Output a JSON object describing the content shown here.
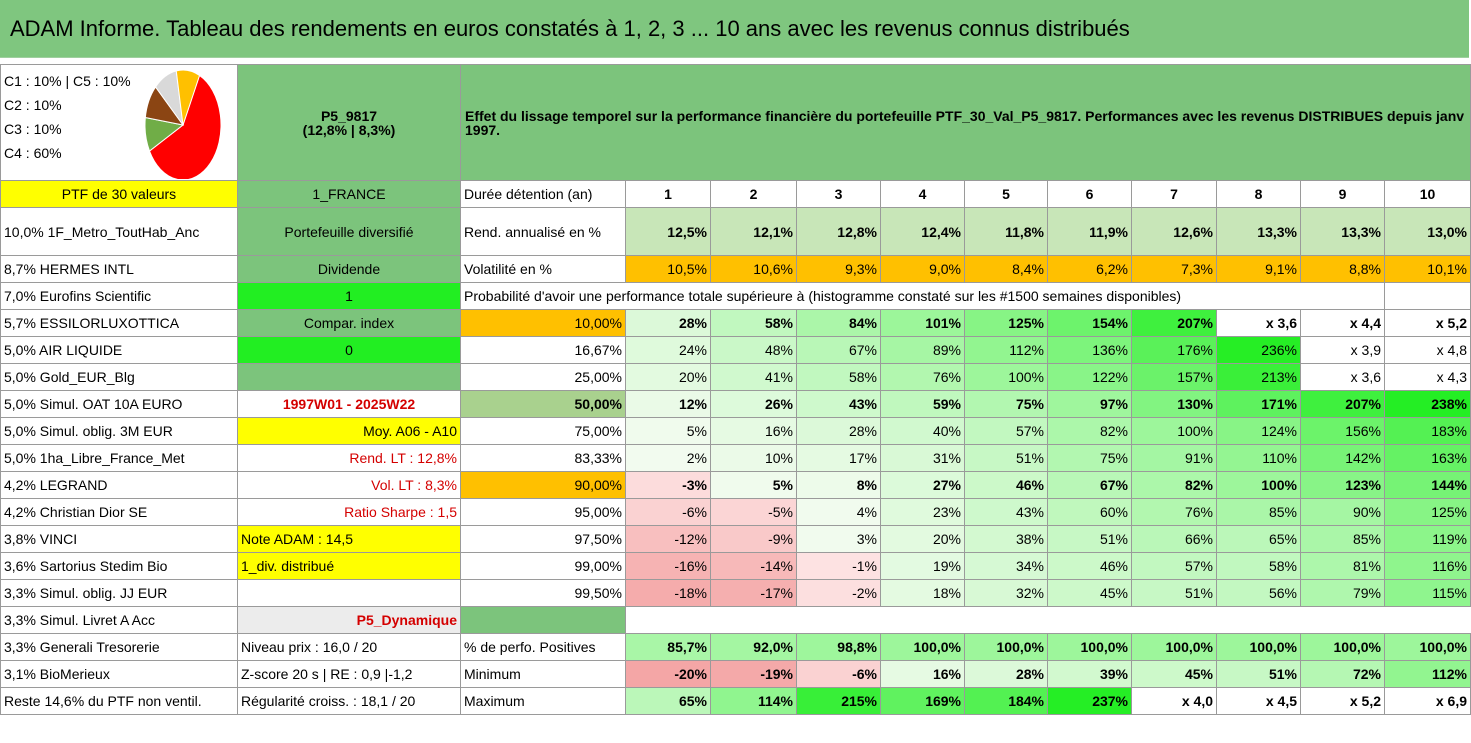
{
  "title": "ADAM Informe. Tableau des rendements en euros constatés à 1, 2, 3 ... 10 ans avec les revenus connus distribués",
  "pie": {
    "lines": [
      "C1 : 10% | C5 : 10%",
      "C2 : 10%",
      "C3 : 10%",
      "C4 : 60%"
    ],
    "slices": [
      {
        "label": "C4",
        "value": 60,
        "color": "#ff0000"
      },
      {
        "label": "C3",
        "value": 10,
        "color": "#70ad47"
      },
      {
        "label": "C2",
        "value": 10,
        "color": "#8b4513"
      },
      {
        "label": "C5",
        "value": 10,
        "color": "#d9d9d9"
      },
      {
        "label": "C1",
        "value": 10,
        "color": "#ffc000"
      }
    ]
  },
  "fund": {
    "code": "P5_9817",
    "stats": "(12,8% | 8,3%)"
  },
  "header_text": "Effet du lissage temporel sur la performance financière du portefeuille PTF_30_Val_P5_9817. Performances avec les revenus DISTRIBUES depuis janv 1997.",
  "holdings": [
    "PTF de 30 valeurs",
    "10,0% 1F_Metro_ToutHab_Anc",
    "8,7% HERMES INTL",
    "7,0% Eurofins Scientific",
    "5,7% ESSILORLUXOTTICA",
    "5,0% AIR LIQUIDE",
    "5,0% Gold_EUR_Blg",
    "5,0% Simul. OAT 10A EURO",
    "5,0% Simul. oblig. 3M EUR",
    "5,0% 1ha_Libre_France_Met",
    "4,2% LEGRAND",
    "4,2% Christian Dior SE",
    "3,8% VINCI",
    "3,6% Sartorius Stedim Bio",
    "3,3% Simul. oblig. JJ EUR",
    "3,3% Simul. Livret A Acc",
    "3,3% Generali Tresorerie",
    "3,1% BioMerieux",
    "Reste 14,6% du PTF non ventil."
  ],
  "info": [
    "1_FRANCE",
    "Portefeuille diversifié",
    "Dividende",
    "1",
    "Compar. index",
    "0",
    "",
    "1997W01 - 2025W22",
    "Moy. A06 - A10",
    "Rend. LT : 12,8%",
    "Vol. LT : 8,3%",
    "Ratio Sharpe : 1,5",
    "Note ADAM : 14,5",
    "1_div. distribué",
    "",
    "P5_Dynamique",
    "Niveau prix : 16,0 / 20",
    "Z-score 20 s | RE : 0,9 |-1,2",
    "Régularité croiss. : 18,1 / 20"
  ],
  "years_label": "Durée détention (an)",
  "years": [
    "1",
    "2",
    "3",
    "4",
    "5",
    "6",
    "7",
    "8",
    "9",
    "10"
  ],
  "rend_label": "Rend. annualisé en %",
  "rend": [
    "12,5%",
    "12,1%",
    "12,8%",
    "12,4%",
    "11,8%",
    "11,9%",
    "12,6%",
    "13,3%",
    "13,3%",
    "13,0%"
  ],
  "vol_label": "Volatilité en %",
  "vol": [
    "10,5%",
    "10,6%",
    "9,3%",
    "9,0%",
    "8,4%",
    "6,2%",
    "7,3%",
    "9,1%",
    "8,8%",
    "10,1%"
  ],
  "prob_title": "Probabilité d'avoir une performance totale supérieure à (histogramme constaté sur les #1500 semaines disponibles)",
  "prob_rows": [
    {
      "p": "10,00%",
      "v": [
        "28%",
        "58%",
        "84%",
        "101%",
        "125%",
        "154%",
        "207%",
        "x 3,6",
        "x 4,4",
        "x 5,2"
      ]
    },
    {
      "p": "16,67%",
      "v": [
        "24%",
        "48%",
        "67%",
        "89%",
        "112%",
        "136%",
        "176%",
        "236%",
        "x 3,9",
        "x 4,8"
      ]
    },
    {
      "p": "25,00%",
      "v": [
        "20%",
        "41%",
        "58%",
        "76%",
        "100%",
        "122%",
        "157%",
        "213%",
        "x 3,6",
        "x 4,3"
      ]
    },
    {
      "p": "50,00%",
      "v": [
        "12%",
        "26%",
        "43%",
        "59%",
        "75%",
        "97%",
        "130%",
        "171%",
        "207%",
        "238%"
      ]
    },
    {
      "p": "75,00%",
      "v": [
        "5%",
        "16%",
        "28%",
        "40%",
        "57%",
        "82%",
        "100%",
        "124%",
        "156%",
        "183%"
      ]
    },
    {
      "p": "83,33%",
      "v": [
        "2%",
        "10%",
        "17%",
        "31%",
        "51%",
        "75%",
        "91%",
        "110%",
        "142%",
        "163%"
      ]
    },
    {
      "p": "90,00%",
      "v": [
        "-3%",
        "5%",
        "8%",
        "27%",
        "46%",
        "67%",
        "82%",
        "100%",
        "123%",
        "144%"
      ]
    },
    {
      "p": "95,00%",
      "v": [
        "-6%",
        "-5%",
        "4%",
        "23%",
        "43%",
        "60%",
        "76%",
        "85%",
        "90%",
        "125%"
      ]
    },
    {
      "p": "97,50%",
      "v": [
        "-12%",
        "-9%",
        "3%",
        "20%",
        "38%",
        "51%",
        "66%",
        "65%",
        "85%",
        "119%"
      ]
    },
    {
      "p": "99,00%",
      "v": [
        "-16%",
        "-14%",
        "-1%",
        "19%",
        "34%",
        "46%",
        "57%",
        "58%",
        "81%",
        "116%"
      ]
    },
    {
      "p": "99,50%",
      "v": [
        "-18%",
        "-17%",
        "-2%",
        "18%",
        "32%",
        "45%",
        "51%",
        "56%",
        "79%",
        "115%"
      ]
    }
  ],
  "pos_label": "% de perfo. Positives",
  "pos": [
    "85,7%",
    "92,0%",
    "98,8%",
    "100,0%",
    "100,0%",
    "100,0%",
    "100,0%",
    "100,0%",
    "100,0%",
    "100,0%"
  ],
  "min_label": "Minimum",
  "min": [
    "-20%",
    "-19%",
    "-6%",
    "16%",
    "28%",
    "39%",
    "45%",
    "51%",
    "72%",
    "112%"
  ],
  "max_label": "Maximum",
  "max": [
    "65%",
    "114%",
    "215%",
    "169%",
    "184%",
    "237%",
    "x 4,0",
    "x 4,5",
    "x 5,2",
    "x 6,9"
  ],
  "colors": {
    "title_green": "#7fc67f",
    "heat_low": "#ffffff",
    "heat_high": "#22ee22",
    "heat_negative": "#f4a6a6",
    "orange": "#ffc000",
    "yellow": "#ffff00"
  }
}
